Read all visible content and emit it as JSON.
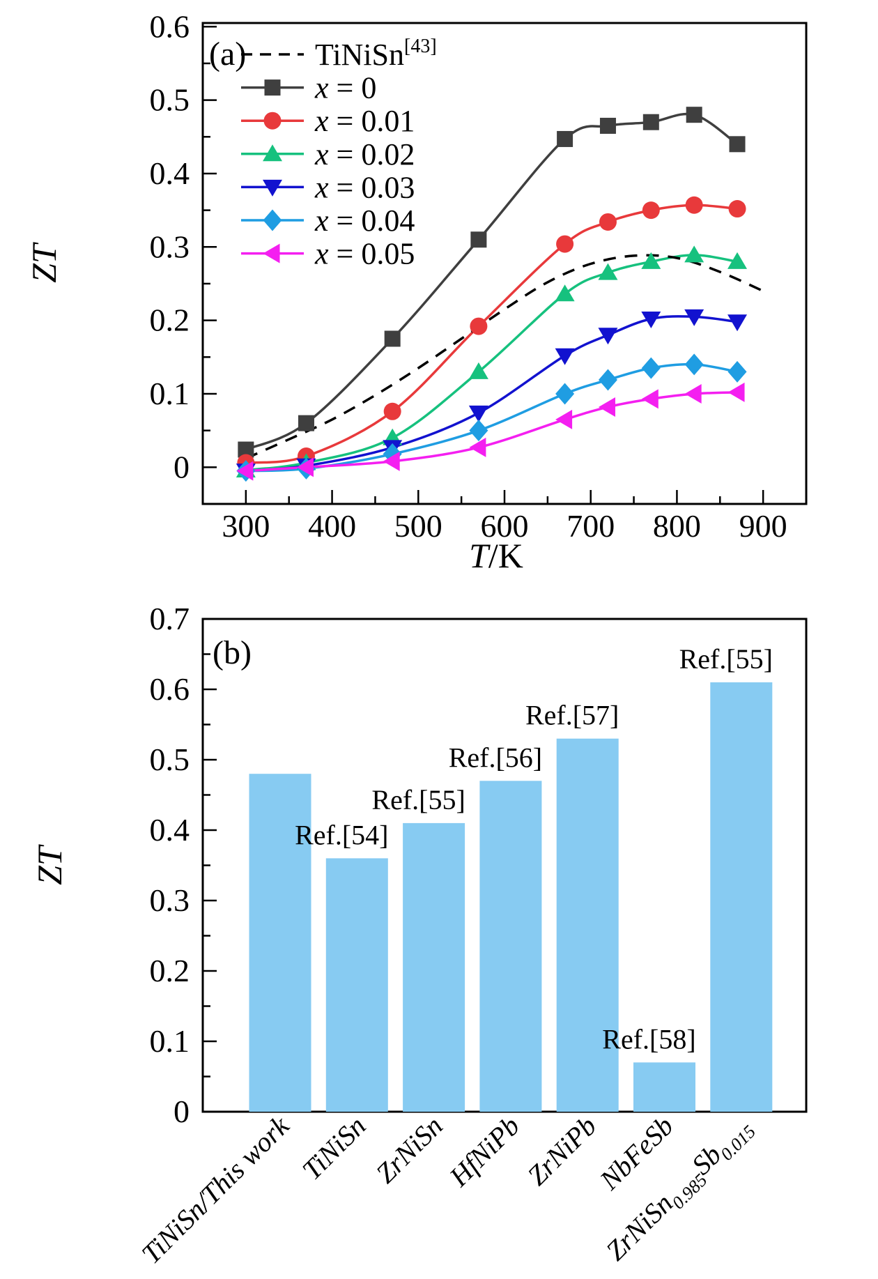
{
  "panels": {
    "a": {
      "tag": "(a)",
      "ylabel": "ZT",
      "xlabel_var": "T",
      "xlabel_rest": "/K"
    },
    "b": {
      "tag": "(b)",
      "ylabel": "ZT"
    }
  },
  "colors": {
    "axis": "#000000",
    "bar_fill": "#87cbf2",
    "series_black": "#3f3f3f",
    "series_red": "#e8393b",
    "series_green": "#16c17e",
    "series_blue": "#1212cf",
    "series_cyan": "#1f9de2",
    "series_magenta": "#f41ff0"
  },
  "chart_data": [
    {
      "type": "line",
      "panel": "a",
      "title": "",
      "xlabel": "T/K",
      "ylabel": "ZT",
      "xlim": [
        250,
        950
      ],
      "ylim": [
        -0.05,
        0.605
      ],
      "xticks": [
        300,
        400,
        500,
        600,
        700,
        800,
        900
      ],
      "xminor": [
        350,
        450,
        550,
        650,
        750,
        850
      ],
      "yticks": [
        0,
        0.1,
        0.2,
        0.3,
        0.4,
        0.5,
        0.6
      ],
      "yminor": [
        0.05,
        0.15,
        0.25,
        0.35,
        0.45,
        0.55
      ],
      "grid": false,
      "legend_position": "top-left",
      "reference_curve": {
        "label": "TiNiSn",
        "label_sup": "[43]",
        "line_style": "dashed",
        "color": "#000000",
        "x": [
          300,
          350,
          400,
          450,
          500,
          550,
          600,
          650,
          700,
          750,
          800,
          850,
          900
        ],
        "y": [
          0.012,
          0.038,
          0.065,
          0.098,
          0.135,
          0.175,
          0.215,
          0.252,
          0.277,
          0.288,
          0.285,
          0.266,
          0.24
        ]
      },
      "x": [
        300,
        370,
        470,
        570,
        670,
        720,
        770,
        820,
        870
      ],
      "series": [
        {
          "label_var": "x",
          "label_rest": " = 0",
          "marker": "square",
          "color": "#3f3f3f",
          "values": [
            0.024,
            0.06,
            0.175,
            0.31,
            0.447,
            0.465,
            0.47,
            0.48,
            0.44
          ]
        },
        {
          "label_var": "x",
          "label_rest": " = 0.01",
          "marker": "circle",
          "color": "#e8393b",
          "values": [
            0.006,
            0.015,
            0.076,
            0.192,
            0.304,
            0.334,
            0.35,
            0.357,
            0.352
          ]
        },
        {
          "label_var": "x",
          "label_rest": " = 0.02",
          "marker": "triangle-up",
          "color": "#16c17e",
          "values": [
            -0.004,
            0.006,
            0.04,
            0.13,
            0.236,
            0.265,
            0.28,
            0.289,
            0.28
          ]
        },
        {
          "label_var": "x",
          "label_rest": " = 0.03",
          "marker": "triangle-down",
          "color": "#1212cf",
          "values": [
            -0.005,
            0.002,
            0.027,
            0.074,
            0.152,
            0.18,
            0.202,
            0.205,
            0.198
          ]
        },
        {
          "label_var": "x",
          "label_rest": " = 0.04",
          "marker": "diamond",
          "color": "#1f9de2",
          "values": [
            -0.005,
            -0.002,
            0.018,
            0.05,
            0.1,
            0.119,
            0.135,
            0.14,
            0.13
          ]
        },
        {
          "label_var": "x",
          "label_rest": " = 0.05",
          "marker": "triangle-left",
          "color": "#f41ff0",
          "values": [
            -0.005,
            0.0,
            0.008,
            0.027,
            0.065,
            0.082,
            0.093,
            0.1,
            0.102
          ]
        }
      ]
    },
    {
      "type": "bar",
      "panel": "b",
      "ylabel": "ZT",
      "ylim": [
        0,
        0.7
      ],
      "yticks": [
        0,
        0.1,
        0.2,
        0.3,
        0.4,
        0.5,
        0.6,
        0.7
      ],
      "yminor": [
        0.05,
        0.15,
        0.25,
        0.35,
        0.45,
        0.55,
        0.65
      ],
      "bar_color": "#87cbf2",
      "categories": [
        "TiNiSn/This work",
        "TiNiSn",
        "ZrNiSn",
        "HfNiPb",
        "ZrNiPb",
        "NbFeSb",
        "ZrNiSn0.985Sb0.015"
      ],
      "categories_rich": [
        [
          {
            "t": "TiNiSn/This work"
          }
        ],
        [
          {
            "t": "TiNiSn"
          }
        ],
        [
          {
            "t": "ZrNiSn"
          }
        ],
        [
          {
            "t": "HfNiPb"
          }
        ],
        [
          {
            "t": "ZrNiPb"
          }
        ],
        [
          {
            "t": "NbFeSb"
          }
        ],
        [
          {
            "t": "ZrNiSn"
          },
          {
            "t": "0.985",
            "sub": true
          },
          {
            "t": "Sb"
          },
          {
            "t": "0.015",
            "sub": true
          }
        ]
      ],
      "values": [
        0.48,
        0.36,
        0.41,
        0.47,
        0.53,
        0.07,
        0.61
      ],
      "ref_labels": [
        "",
        "Ref.[54]",
        "Ref.[55]",
        "Ref.[56]",
        "Ref.[57]",
        "Ref.[58]",
        "Ref.[55]"
      ]
    }
  ]
}
